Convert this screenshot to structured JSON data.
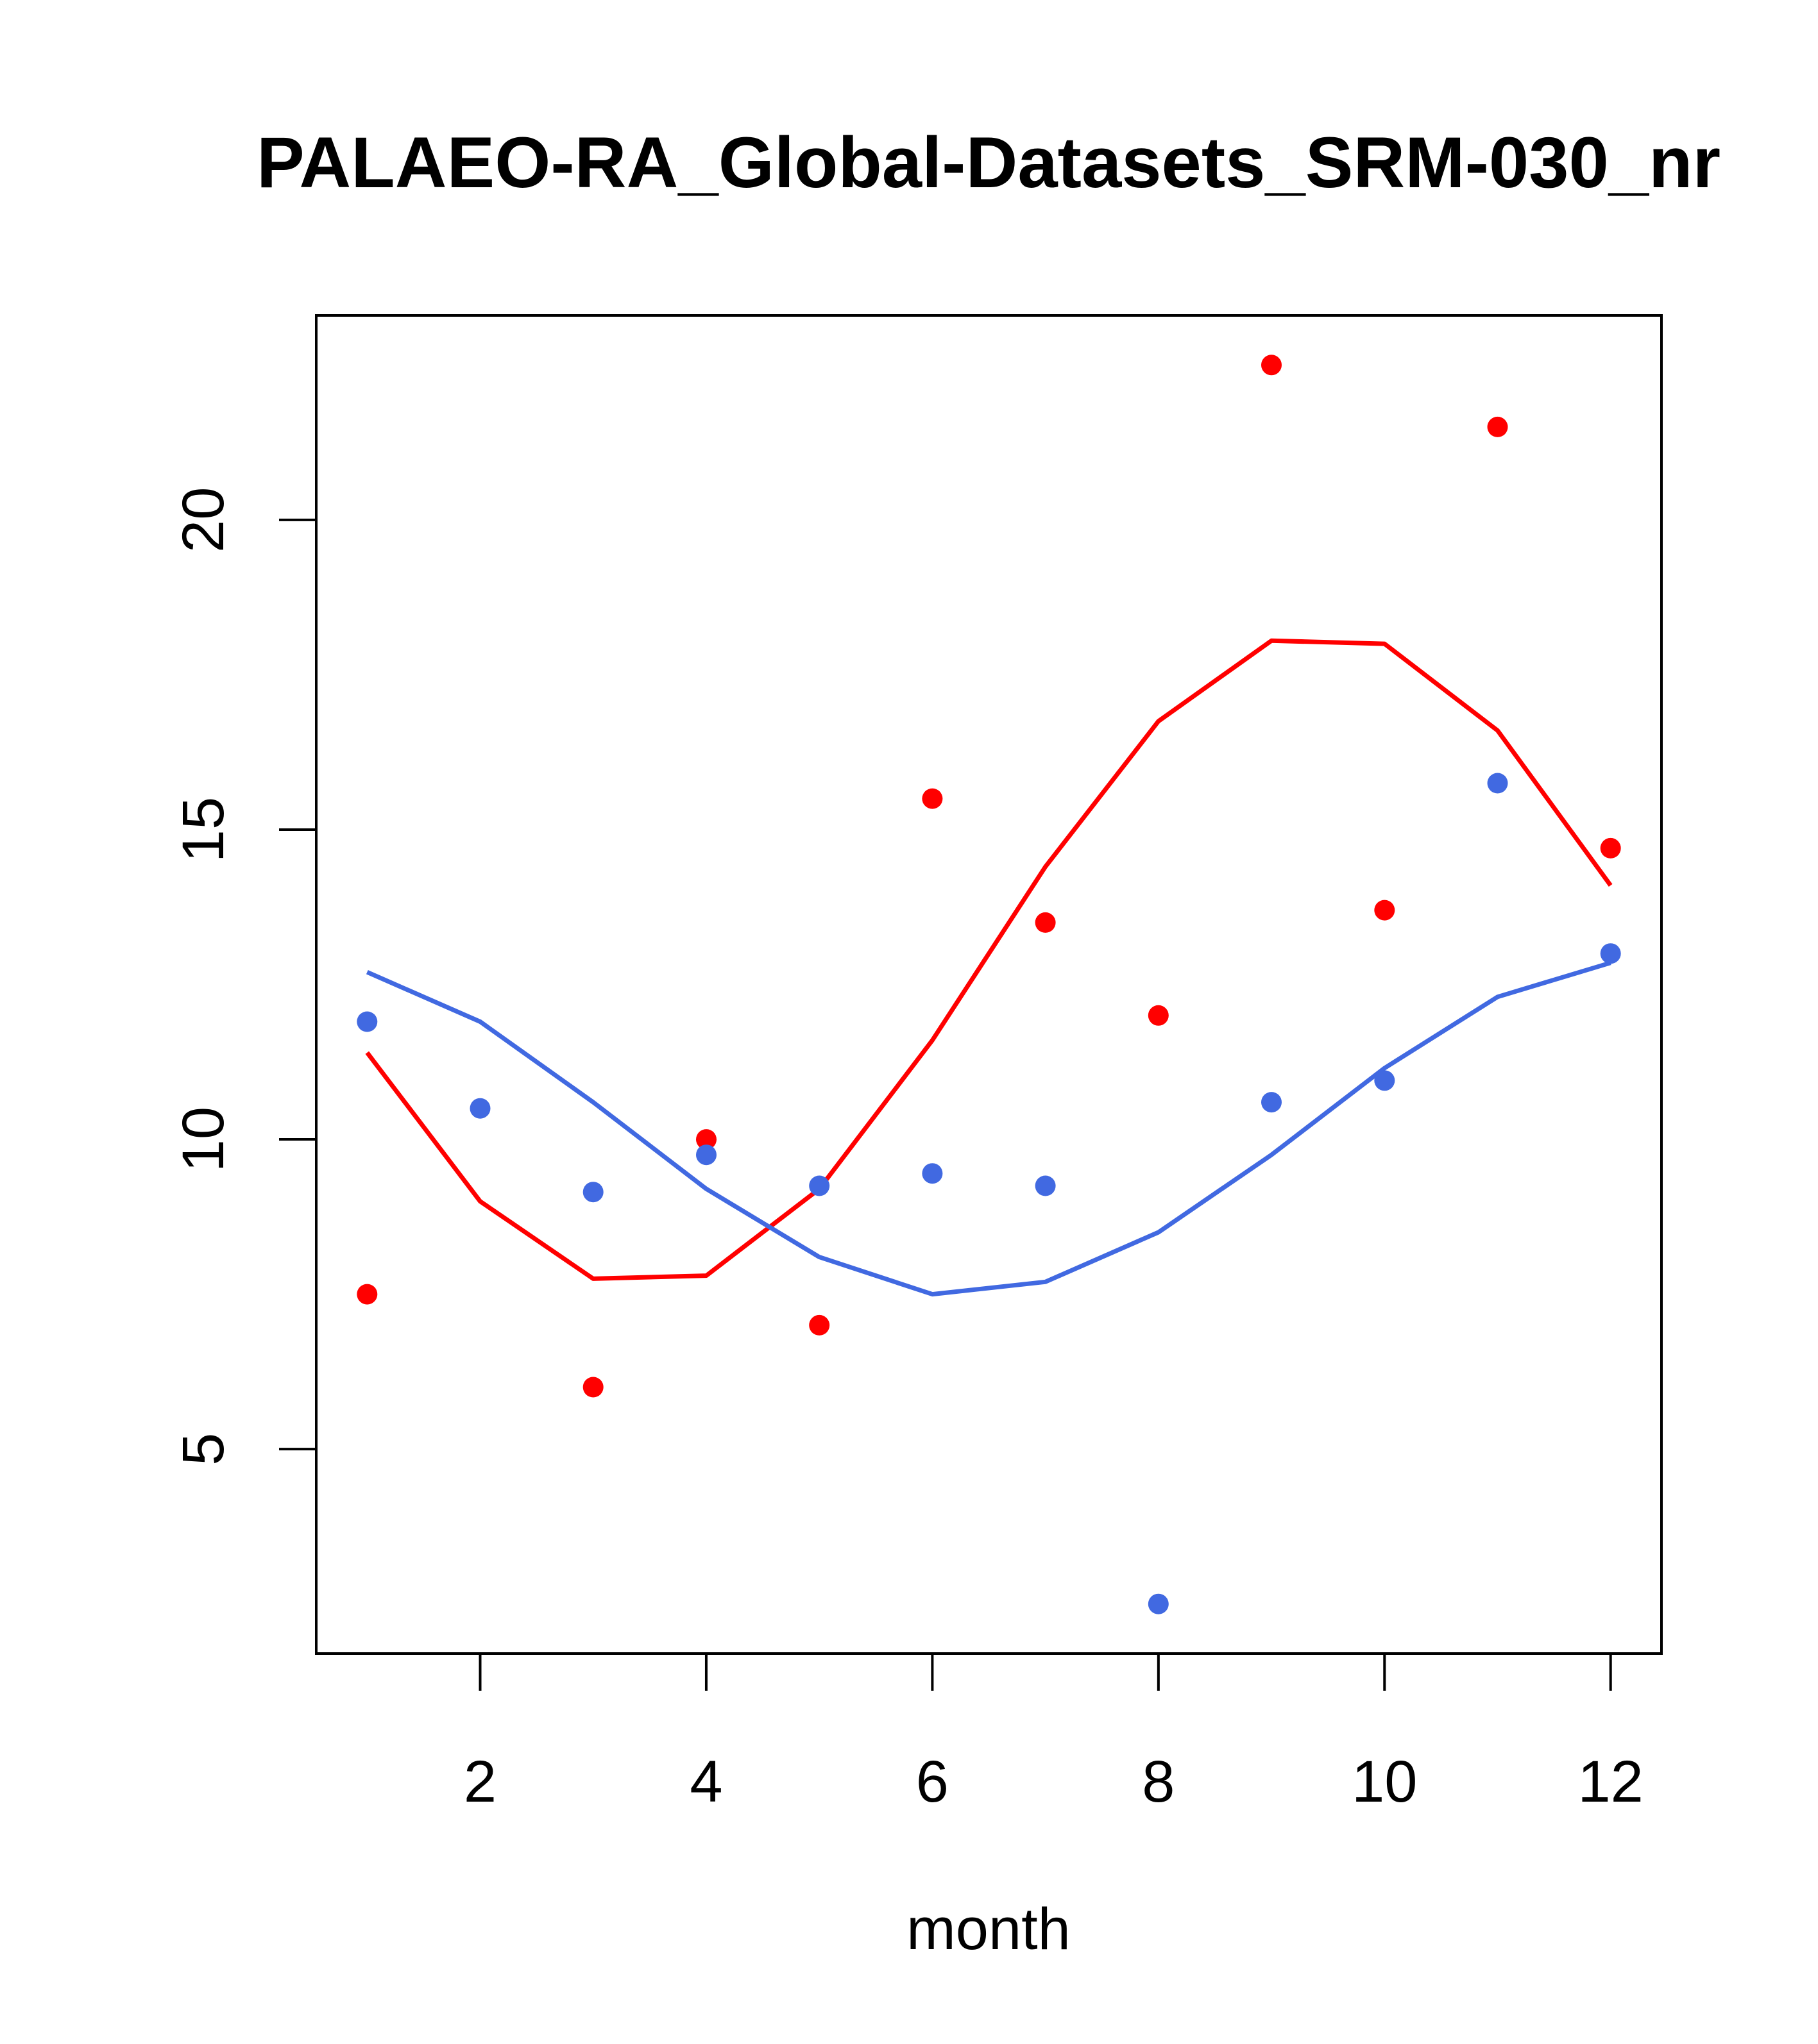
{
  "chart_data": {
    "type": "scatter",
    "title": "PALAEO-RA_Global-Datasets_SRM-030_nr",
    "xlabel": "month",
    "ylabel": "",
    "xlim": [
      0.55,
      12.45
    ],
    "ylim": [
      1.7,
      23.3
    ],
    "x_ticks": [
      2,
      4,
      6,
      8,
      10,
      12
    ],
    "y_ticks": [
      5,
      10,
      15,
      20
    ],
    "x": [
      1,
      2,
      3,
      4,
      5,
      6,
      7,
      8,
      9,
      10,
      11,
      12
    ],
    "series": [
      {
        "name": "red points",
        "kind": "points",
        "color": "#ff0000",
        "x": [
          1,
          3,
          4,
          5,
          6,
          7,
          8,
          9,
          10,
          11,
          12
        ],
        "values": [
          7.5,
          6.0,
          10.0,
          7.0,
          15.5,
          13.5,
          12.0,
          22.5,
          13.7,
          21.5,
          14.7
        ]
      },
      {
        "name": "blue points",
        "kind": "points",
        "color": "#4169e1",
        "x": [
          1,
          2,
          3,
          4,
          5,
          6,
          7,
          8,
          9,
          10,
          11,
          12
        ],
        "values": [
          11.9,
          10.5,
          9.15,
          9.75,
          9.25,
          9.45,
          9.25,
          2.5,
          10.6,
          10.95,
          15.75,
          13.0
        ]
      },
      {
        "name": "red line",
        "kind": "line",
        "color": "#ff0000",
        "x": [
          1,
          2,
          3,
          4,
          5,
          6,
          7,
          8,
          9,
          10,
          11,
          12
        ],
        "values": [
          11.4,
          9.0,
          7.75,
          7.8,
          9.2,
          11.6,
          14.4,
          16.75,
          18.05,
          18.0,
          16.6,
          14.1
        ]
      },
      {
        "name": "blue line",
        "kind": "line",
        "color": "#4169e1",
        "x": [
          1,
          2,
          3,
          4,
          5,
          6,
          7,
          8,
          9,
          10,
          11,
          12
        ],
        "values": [
          12.7,
          11.9,
          10.6,
          9.2,
          8.1,
          7.5,
          7.7,
          8.5,
          9.75,
          11.15,
          12.3,
          12.85
        ]
      }
    ]
  }
}
